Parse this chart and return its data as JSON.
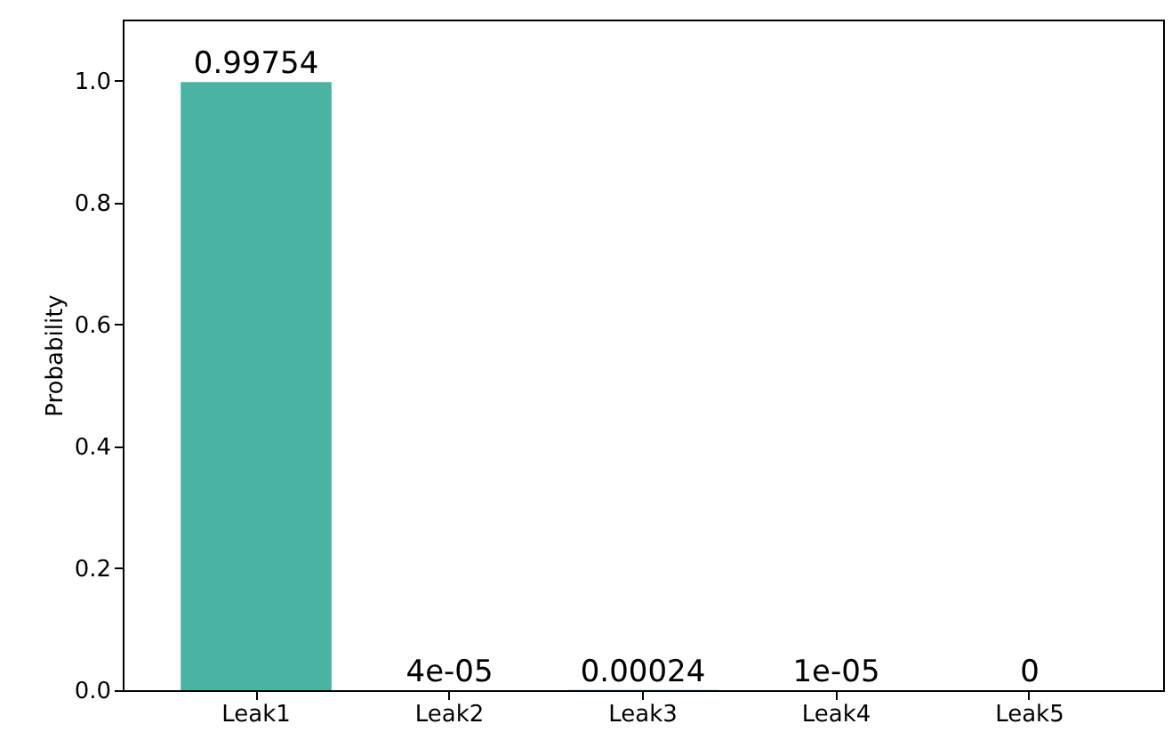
{
  "chart_data": {
    "type": "bar",
    "ylabel": "Probability",
    "categories": [
      "Leak1",
      "Leak2",
      "Leak3",
      "Leak4",
      "Leak5"
    ],
    "values": [
      0.99754,
      4e-05,
      0.00024,
      1e-05,
      0
    ],
    "value_labels": [
      "0.99754",
      "4e-05",
      "0.00024",
      "1e-05",
      "0"
    ],
    "color": "#4bb3a2",
    "ylim": [
      0,
      1.1
    ],
    "yticks": [
      {
        "value": 0,
        "label": "0.0"
      },
      {
        "value": 0.2,
        "label": "0.2"
      },
      {
        "value": 0.4,
        "label": "0.4"
      },
      {
        "value": 0.6,
        "label": "0.6"
      },
      {
        "value": 0.8,
        "label": "0.8"
      },
      {
        "value": 1,
        "label": "1.0"
      }
    ],
    "grid": false
  }
}
